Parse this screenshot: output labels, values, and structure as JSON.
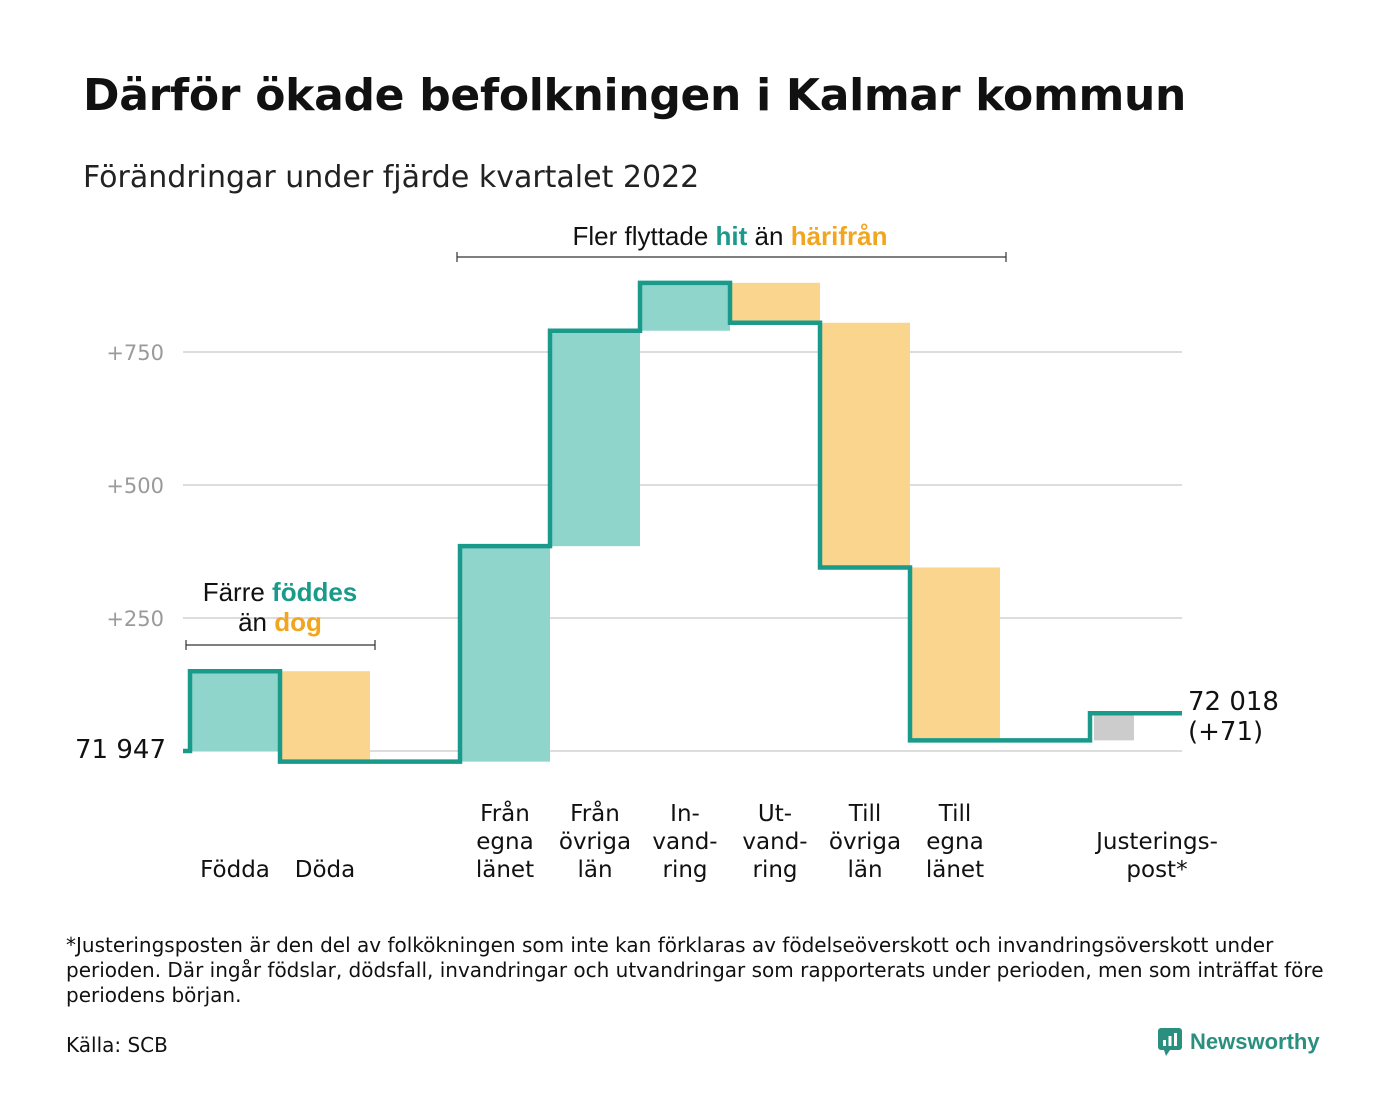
{
  "title": "Därför ökade befolkningen i Kalmar kommun",
  "subtitle": "Förändringar under fjärde kvartalet 2022",
  "chart_data": {
    "type": "waterfall",
    "baseline": 71947,
    "baseline_label": "71 947",
    "end_label_line1": "72 018",
    "end_label_line2": "(+71)",
    "y_ticks": [
      {
        "value": 250,
        "label": "+250"
      },
      {
        "value": 500,
        "label": "+500"
      },
      {
        "value": 750,
        "label": "+750"
      }
    ],
    "ylim": [
      -40,
      900
    ],
    "steps": [
      {
        "label_lines": [
          "Födda"
        ],
        "change": 150,
        "kind": "pos",
        "group": 0
      },
      {
        "label_lines": [
          "Döda"
        ],
        "change": -170,
        "kind": "neg",
        "group": 0
      },
      {
        "label_lines": [
          "Från",
          "egna",
          "länet"
        ],
        "change": 405,
        "kind": "pos",
        "group": 1
      },
      {
        "label_lines": [
          "Från",
          "övriga",
          "län"
        ],
        "change": 405,
        "kind": "pos",
        "group": 1
      },
      {
        "label_lines": [
          "In-",
          "vand-",
          "ring"
        ],
        "change": 90,
        "kind": "pos",
        "group": 1
      },
      {
        "label_lines": [
          "Ut-",
          "vand-",
          "ring"
        ],
        "change": -75,
        "kind": "neg",
        "group": 1
      },
      {
        "label_lines": [
          "Till",
          "övriga",
          "län"
        ],
        "change": -460,
        "kind": "neg",
        "group": 1
      },
      {
        "label_lines": [
          "Till",
          "egna",
          "länet"
        ],
        "change": -325,
        "kind": "neg",
        "group": 1
      },
      {
        "label_lines": [
          "Justerings-",
          "post*"
        ],
        "change": 51,
        "kind": "adj",
        "group": 2
      }
    ],
    "annotations": {
      "birth": {
        "line1": "Färre ",
        "hit": "föddes",
        "line2": "än ",
        "neg": "dog"
      },
      "migration": {
        "pre": "Fler flyttade ",
        "hit": "hit",
        "mid": " än ",
        "neg": "härifrån"
      }
    },
    "colors": {
      "pos": "#8fd5cc",
      "neg": "#fad58e",
      "adj": "#cccccc",
      "line": "#1a9a8a",
      "grid": "#dddddd",
      "accent_pos": "#1a9a8a",
      "accent_neg": "#f2a51f"
    }
  },
  "footnote": "*Justeringsposten är den del av folkökningen som inte kan förklaras av födelseöverskott och invandringsöverskott under perioden. Där ingår födslar, dödsfall, invandringar och utvandringar som rapporterats under perioden, men som inträffat före periodens början.",
  "source": "Källa: SCB",
  "brand": "Newsworthy"
}
